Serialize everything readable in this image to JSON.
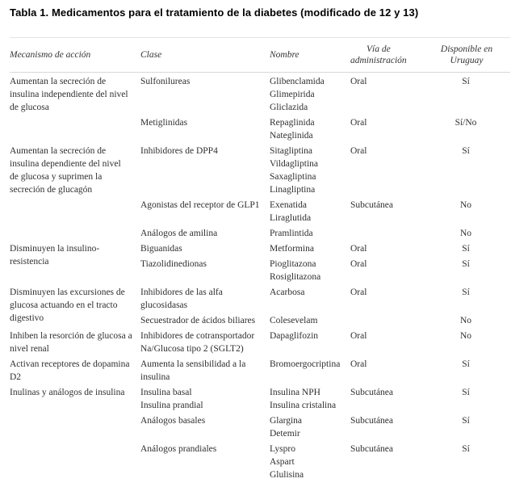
{
  "title": "Tabla 1. Medicamentos para el tratamiento de la diabetes (modificado de 12 y 13)",
  "table": {
    "columns": [
      "Mecanismo de acción",
      "Clase",
      "Nombre",
      "Vía de\nadministración",
      "Disponible en\nUruguay"
    ],
    "groups": [
      {
        "mechanism": "Aumentan la secreción de\ninsulina independiente del nivel\nde glucosa",
        "rows": [
          {
            "clase": "Sulfonilureas",
            "nombre": "Glibenclamida\nGlimepirida\nGliclazida",
            "via": "Oral",
            "disponible": "Sí"
          },
          {
            "clase": "Metiglinidas",
            "nombre": "Repaglinida\nNateglinida",
            "via": "Oral",
            "disponible": "Sí/No"
          }
        ]
      },
      {
        "mechanism": "Aumentan la secreción de\ninsulina dependiente del nivel\nde glucosa y suprimen la\nsecreción de glucagón",
        "rows": [
          {
            "clase": "Inhibidores de DPP4",
            "nombre": "Sitagliptina\nVildagliptina\nSaxagliptina\nLinagliptina",
            "via": "Oral",
            "disponible": "Sí"
          },
          {
            "clase": "Agonistas del receptor de GLP1",
            "nombre": "Exenatida\nLiraglutida",
            "via": "Subcutánea",
            "disponible": "No"
          },
          {
            "clase": "Análogos de amilina",
            "nombre": "Pramlintida",
            "via": "",
            "disponible": "No"
          }
        ]
      },
      {
        "mechanism": "Disminuyen la insulino-\nresistencia",
        "rows": [
          {
            "clase": "Biguanidas",
            "nombre": "Metformina",
            "via": "Oral",
            "disponible": "Sí"
          },
          {
            "clase": "Tiazolidinedionas",
            "nombre": "Pioglitazona\nRosiglitazona",
            "via": "Oral",
            "disponible": "Sí"
          }
        ]
      },
      {
        "mechanism": "Disminuyen las excursiones de\nglucosa actuando en el tracto\ndigestivo",
        "rows": [
          {
            "clase": "Inhibidores de las alfa\nglucosidasas",
            "nombre": "Acarbosa",
            "via": "Oral",
            "disponible": "Sí"
          },
          {
            "clase": "Secuestrador de ácidos biliares",
            "nombre": "Colesevelam",
            "via": "",
            "disponible": "No"
          }
        ]
      },
      {
        "mechanism": "Inhiben la resorción de glucosa a\nnivel renal",
        "rows": [
          {
            "clase": "Inhibidores de cotransportador\nNa/Glucosa tipo 2 (SGLT2)",
            "nombre": "Dapaglifozin",
            "via": "Oral",
            "disponible": "No"
          }
        ]
      },
      {
        "mechanism": "Activan receptores de dopamina\nD2",
        "rows": [
          {
            "clase": "Aumenta la sensibilidad a la\ninsulina",
            "nombre": "Bromoergocriptina",
            "via": "Oral",
            "disponible": "Sí"
          }
        ]
      },
      {
        "mechanism": "Inulinas y análogos de insulina",
        "rows": [
          {
            "clase": "Insulina basal\nInsulina prandial",
            "nombre": "Insulina NPH\nInsulina cristalina",
            "via": "Subcutánea",
            "disponible": "Sí"
          },
          {
            "clase": "Análogos basales",
            "nombre": "Glargina\nDetemir",
            "via": "Subcutánea",
            "disponible": "Sí"
          },
          {
            "clase": "Análogos prandiales",
            "nombre": "Lyspro\nAspart\nGlulisina",
            "via": "Subcutánea",
            "disponible": "Sí"
          }
        ]
      }
    ]
  }
}
